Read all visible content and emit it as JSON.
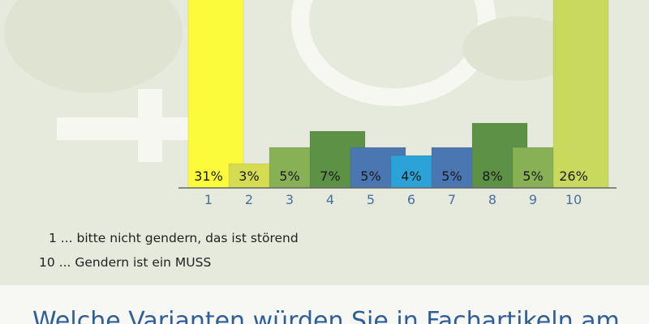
{
  "chart_data": {
    "type": "bar",
    "categories": [
      "1",
      "2",
      "3",
      "4",
      "5",
      "6",
      "7",
      "8",
      "9",
      "10"
    ],
    "values": [
      31,
      3,
      5,
      7,
      5,
      4,
      5,
      8,
      5,
      26
    ],
    "value_labels": [
      "31%",
      "3%",
      "5%",
      "7%",
      "5%",
      "4%",
      "5%",
      "8%",
      "5%",
      "26%"
    ],
    "unit": "%",
    "colors": [
      "#fbfb3c",
      "#d5dc52",
      "#88b156",
      "#5d9146",
      "#4a77b2",
      "#2ba3d9",
      "#4a77b2",
      "#5d9146",
      "#88b156",
      "#c9d95e"
    ],
    "title": "",
    "xlabel": "",
    "ylabel": "",
    "ylim": [
      0,
      9
    ],
    "grid": false,
    "legend": "none"
  },
  "legend_notes": {
    "first": "1 ... bitte nicht gendern, das ist störend",
    "last": "10 ... Gendern ist ein MUSS"
  },
  "bottom_title": "Welche Varianten würden Sie in Fachartikeln am",
  "theme": {
    "background": "#e6eadc",
    "decoration": "#f6f7f1",
    "tick_color": "#4a6fa0",
    "title_color": "#2f5f97"
  }
}
